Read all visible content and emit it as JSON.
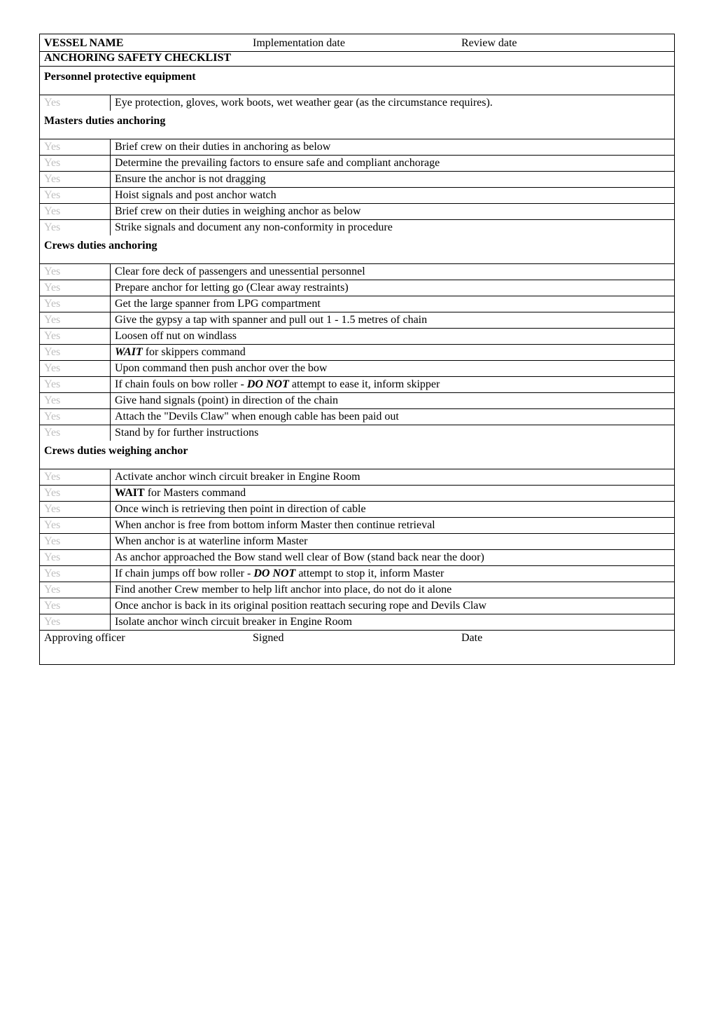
{
  "header": {
    "vessel_label": "VESSEL NAME",
    "impl_label": "Implementation date",
    "review_label": "Review date",
    "subtitle": "ANCHORING SAFETY CHECKLIST"
  },
  "sections": [
    {
      "title": "Personnel protective equipment",
      "rows": [
        {
          "yes": "Yes",
          "text": "Eye protection, gloves, work boots, wet weather gear (as the circumstance requires)."
        }
      ]
    },
    {
      "title": "Masters duties anchoring",
      "rows": [
        {
          "yes": "Yes",
          "text": "Brief crew on their duties in anchoring as below"
        },
        {
          "yes": "Yes",
          "text": "Determine the prevailing factors to ensure safe and compliant anchorage"
        },
        {
          "yes": "Yes",
          "text": "Ensure the anchor is not dragging"
        },
        {
          "yes": "Yes",
          "text": "Hoist signals and post anchor watch"
        },
        {
          "yes": "Yes",
          "text": "Brief crew on their duties in weighing anchor as below"
        },
        {
          "yes": "Yes",
          "text": "Strike signals and document any non-conformity in procedure"
        }
      ]
    },
    {
      "title": "Crews duties anchoring",
      "rows": [
        {
          "yes": "Yes",
          "text": "Clear fore deck of passengers and unessential personnel"
        },
        {
          "yes": "Yes",
          "text": "Prepare anchor for letting go (Clear away restraints)"
        },
        {
          "yes": "Yes",
          "text": "Get the large spanner from LPG compartment"
        },
        {
          "yes": "Yes",
          "text": "Give the gypsy a tap with spanner and pull out 1 - 1.5 metres of chain"
        },
        {
          "yes": "Yes",
          "text": "Loosen off nut on windlass"
        },
        {
          "yes": "Yes",
          "html": "<em class='bi'>WAIT</em> for skippers command"
        },
        {
          "yes": "Yes",
          "text": "Upon command then push anchor over the bow"
        },
        {
          "yes": "Yes",
          "html": "If chain fouls on bow roller - <em class='bi'>DO NOT</em> attempt to ease it, inform skipper"
        },
        {
          "yes": "Yes",
          "text": "Give hand signals (point) in direction of the chain"
        },
        {
          "yes": "Yes",
          "text": "Attach the \"Devils Claw\" when enough cable has been paid out"
        },
        {
          "yes": "Yes",
          "text": "Stand by for further instructions"
        }
      ]
    },
    {
      "title": "Crews duties weighing anchor",
      "rows": [
        {
          "yes": "Yes",
          "text": "Activate anchor winch circuit breaker in Engine Room"
        },
        {
          "yes": "Yes",
          "html": "<strong>WAIT</strong> for Masters command"
        },
        {
          "yes": "Yes",
          "text": "Once winch is retrieving then point in direction of cable"
        },
        {
          "yes": "Yes",
          "text": "When anchor is free from bottom inform Master then continue retrieval"
        },
        {
          "yes": "Yes",
          "text": "When anchor is at waterline inform Master"
        },
        {
          "yes": "Yes",
          "text": "As anchor approached the Bow stand well clear of Bow (stand back near the door)"
        },
        {
          "yes": "Yes",
          "html": "If chain jumps off bow roller - <em class='bi'>DO NOT</em> attempt to stop it, inform Master"
        },
        {
          "yes": "Yes",
          "text": "Find another Crew member to help lift anchor into place, do not do it alone"
        },
        {
          "yes": "Yes",
          "text": "Once anchor is back in its original position reattach securing rope and Devils Claw"
        },
        {
          "yes": "Yes",
          "text": "Isolate anchor winch circuit breaker in Engine Room"
        }
      ]
    }
  ],
  "footer": {
    "left": "Approving officer",
    "mid": "Signed",
    "right": "Date"
  }
}
